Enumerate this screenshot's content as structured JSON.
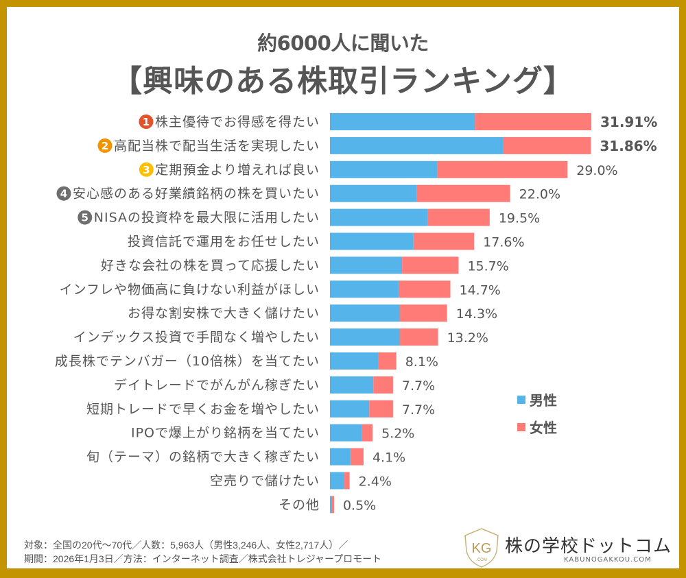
{
  "header": {
    "subtitle": "約6000人に聞いた",
    "title": "【興味のある株取引ランキング】"
  },
  "colors": {
    "frame": "#c39400",
    "male": "#55b5ea",
    "female": "#ff7b78",
    "text": "#555555",
    "badge_1": "#e2532c",
    "badge_2": "#f29300",
    "badge_3": "#fcc000",
    "badge_other": "#6e6e6e"
  },
  "chart_data": {
    "type": "bar",
    "orientation": "horizontal",
    "stacked": true,
    "title": "【興味のある株取引ランキング】",
    "subtitle": "約6000人に聞いた",
    "xlabel": "",
    "ylabel": "",
    "xlim": [
      0,
      35
    ],
    "grid": false,
    "legend_position": "right",
    "categories": [
      "株主優待でお得感を得たい",
      "高配当株で配当生活を実現したい",
      "定期預金より増えれば良い",
      "安心感のある好業績銘柄の株を買いたい",
      "NISAの投資枠を最大限に活用したい",
      "投資信託で運用をお任せしたい",
      "好きな会社の株を買って応援したい",
      "インフレや物価高に負けない利益がほしい",
      "お得な割安株で大きく儲けたい",
      "インデックス投資で手間なく増やしたい",
      "成長株でテンバガー（10倍株）を当てたい",
      "デイトレードでがんがん稼ぎたい",
      "短期トレードで早くお金を増やしたい",
      "IPOで爆上がり銘柄を当てたい",
      "旬（テーマ）の銘柄で大きく稼ぎたい",
      "空売りで儲けたい",
      "その他"
    ],
    "ranks": [
      "1",
      "2",
      "3",
      "4",
      "5",
      "",
      "",
      "",
      "",
      "",
      "",
      "",
      "",
      "",
      "",
      "",
      ""
    ],
    "totals": [
      31.91,
      31.86,
      29.0,
      22.0,
      19.5,
      17.6,
      15.7,
      14.7,
      14.3,
      13.2,
      8.1,
      7.7,
      7.7,
      5.2,
      4.1,
      2.4,
      0.5
    ],
    "value_labels": [
      "31.91%",
      "31.86%",
      "29.0%",
      "22.0%",
      "19.5%",
      "17.6%",
      "15.7%",
      "14.7%",
      "14.3%",
      "13.2%",
      "8.1%",
      "7.7%",
      "7.7%",
      "5.2%",
      "4.1%",
      "2.4%",
      "0.5%"
    ],
    "series": [
      {
        "name": "男性",
        "values": [
          17.7,
          21.2,
          13.1,
          10.6,
          11.9,
          10.2,
          8.8,
          8.4,
          8.5,
          8.5,
          5.9,
          5.3,
          4.8,
          3.9,
          2.5,
          1.7,
          0.25
        ]
      },
      {
        "name": "女性",
        "values": [
          14.21,
          10.66,
          15.9,
          11.4,
          7.6,
          7.4,
          6.9,
          6.3,
          5.8,
          4.7,
          2.2,
          2.4,
          2.9,
          1.3,
          1.6,
          0.7,
          0.25
        ]
      }
    ]
  },
  "footer": {
    "line1": "対象：全国の20代〜70代／人数：5,963人（男性3,246人、女性2,717人）／",
    "line2": "期間：2026年1月3日／方法：インターネット調査／株式会社トレジャープロモート"
  },
  "logo": {
    "name": "株の学校ドットコム",
    "url": "KABUNOGAKKOU.COM",
    "mark": "KG",
    "mark_sub": ".COM"
  }
}
